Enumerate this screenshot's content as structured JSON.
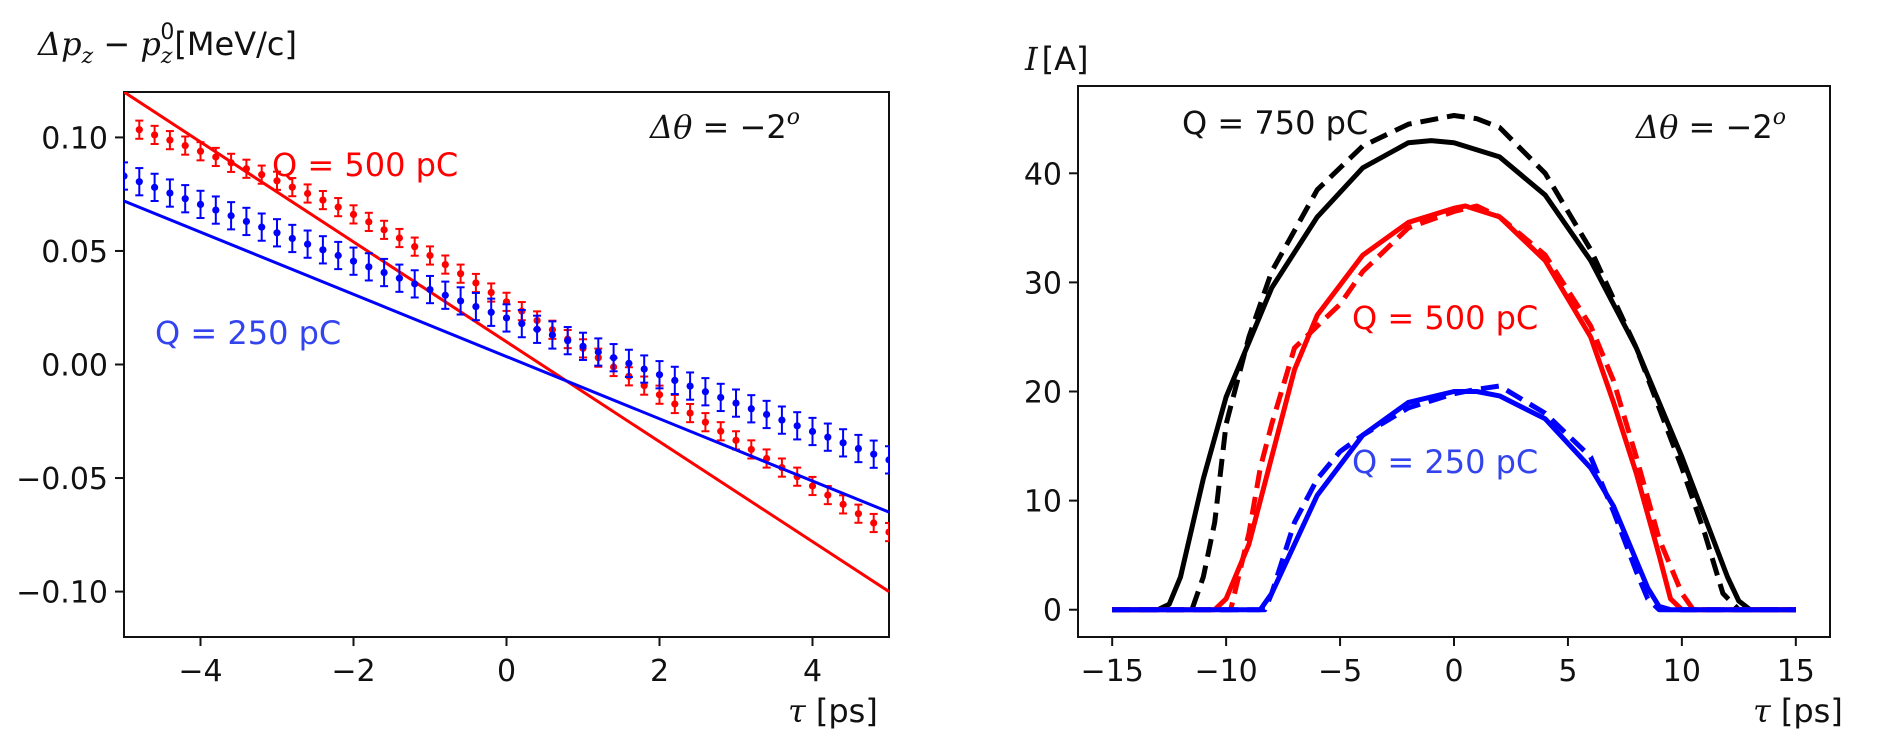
{
  "chart_data": [
    {
      "type": "scatter",
      "panel": "left",
      "ylabel": "Δp_z − p_z^0 [MeV/c]",
      "ylabel_parts": {
        "a": "Δ",
        "b": "p",
        "c": "z",
        "d": " − ",
        "e": "p",
        "f": "z",
        "g": "0",
        "unit": "[MeV/c]"
      },
      "xlabel": "τ [ps]",
      "xlabel_parts": {
        "tau": "τ",
        "unit": " [ps]"
      },
      "xlim": [
        -5,
        5
      ],
      "ylim": [
        -0.12,
        0.12
      ],
      "xticks": [
        -4,
        -2,
        0,
        2,
        4
      ],
      "xtick_labels": [
        "−4",
        "−2",
        "0",
        "2",
        "4"
      ],
      "yticks": [
        0.1,
        0.05,
        0.0,
        -0.05,
        -0.1
      ],
      "ytick_labels": [
        "0.10",
        "0.05",
        "0.00",
        "−0.05",
        "−0.10"
      ],
      "annotation_theta": {
        "d": "Δ",
        "theta": "θ",
        "eq": " = −2",
        "sup": "o"
      },
      "series": [
        {
          "name": "Q = 500 pC",
          "color": "#ff0000",
          "fit": {
            "x": [
              -5,
              5
            ],
            "y": [
              0.12,
              -0.1
            ]
          },
          "x": [
            -4.8,
            -4.6,
            -4.4,
            -4.2,
            -4.0,
            -3.8,
            -3.6,
            -3.4,
            -3.2,
            -3.0,
            -2.8,
            -2.6,
            -2.4,
            -2.2,
            -2.0,
            -1.8,
            -1.6,
            -1.4,
            -1.2,
            -1.0,
            -0.8,
            -0.6,
            -0.4,
            -0.2,
            0.0,
            0.2,
            0.4,
            0.6,
            0.8,
            1.0,
            1.2,
            1.4,
            1.6,
            1.8,
            2.0,
            2.2,
            2.4,
            2.6,
            2.8,
            3.0,
            3.2,
            3.4,
            3.6,
            3.8,
            4.0,
            4.2,
            4.4,
            4.6,
            4.8,
            5.0
          ],
          "y": [
            0.1034,
            0.1011,
            0.0988,
            0.0964,
            0.0939,
            0.0914,
            0.0888,
            0.0862,
            0.0836,
            0.0809,
            0.0781,
            0.0753,
            0.0724,
            0.0693,
            0.0661,
            0.0628,
            0.0593,
            0.0557,
            0.0519,
            0.048,
            0.044,
            0.04,
            0.0359,
            0.0317,
            0.0276,
            0.0235,
            0.0194,
            0.0153,
            0.0112,
            0.0071,
            0.003,
            -0.0011,
            -0.0052,
            -0.0093,
            -0.0133,
            -0.0174,
            -0.0214,
            -0.0254,
            -0.0294,
            -0.0334,
            -0.0374,
            -0.0414,
            -0.0454,
            -0.0494,
            -0.0535,
            -0.0575,
            -0.0616,
            -0.0657,
            -0.0698,
            -0.0738
          ],
          "err": 0.004
        },
        {
          "name": "Q = 250 pC",
          "color": "#0000ff",
          "fit": {
            "x": [
              -5,
              5
            ],
            "y": [
              0.072,
              -0.065
            ]
          },
          "x": [
            -5.0,
            -4.8,
            -4.6,
            -4.4,
            -4.2,
            -4.0,
            -3.8,
            -3.6,
            -3.4,
            -3.2,
            -3.0,
            -2.8,
            -2.6,
            -2.4,
            -2.2,
            -2.0,
            -1.8,
            -1.6,
            -1.4,
            -1.2,
            -1.0,
            -0.8,
            -0.6,
            -0.4,
            -0.2,
            0.0,
            0.2,
            0.4,
            0.6,
            0.8,
            1.0,
            1.2,
            1.4,
            1.6,
            1.8,
            2.0,
            2.2,
            2.4,
            2.6,
            2.8,
            3.0,
            3.2,
            3.4,
            3.6,
            3.8,
            4.0,
            4.2,
            4.4,
            4.6,
            4.8,
            5.0
          ],
          "y": [
            0.083,
            0.0805,
            0.078,
            0.0755,
            0.073,
            0.0705,
            0.068,
            0.0655,
            0.063,
            0.0605,
            0.058,
            0.0555,
            0.053,
            0.0505,
            0.048,
            0.0455,
            0.043,
            0.0405,
            0.038,
            0.0355,
            0.033,
            0.0305,
            0.028,
            0.0255,
            0.023,
            0.0205,
            0.018,
            0.0155,
            0.013,
            0.0105,
            0.008,
            0.0055,
            0.003,
            0.0005,
            -0.002,
            -0.0045,
            -0.007,
            -0.0095,
            -0.012,
            -0.0145,
            -0.017,
            -0.0195,
            -0.022,
            -0.0245,
            -0.027,
            -0.0295,
            -0.032,
            -0.0345,
            -0.037,
            -0.0395,
            -0.042
          ],
          "err": 0.006
        }
      ],
      "labels": [
        "Q = 500 pC",
        "Q = 250 pC"
      ]
    },
    {
      "type": "line",
      "panel": "right",
      "ylabel": "I [A]",
      "ylabel_parts": {
        "i": "I",
        "unit": "[A]"
      },
      "xlabel": "τ [ps]",
      "xlabel_parts": {
        "tau": "τ",
        "unit": " [ps]"
      },
      "xlim": [
        -16.5,
        16.5
      ],
      "ylim": [
        -2.5,
        48
      ],
      "xticks": [
        -15,
        -10,
        -5,
        0,
        5,
        10,
        15
      ],
      "xtick_labels": [
        "−15",
        "−10",
        "−5",
        "0",
        "5",
        "10",
        "15"
      ],
      "yticks": [
        0,
        10,
        20,
        30,
        40
      ],
      "ytick_labels": [
        "0",
        "10",
        "20",
        "30",
        "40"
      ],
      "annotation_theta": {
        "d": "Δ",
        "theta": "θ",
        "eq": " = −2",
        "sup": "o"
      },
      "series": [
        {
          "name": "Q = 750 pC",
          "color": "#000000",
          "solid": {
            "x": [
              -15,
              -13,
              -12.5,
              -12,
              -11,
              -10,
              -8,
              -6,
              -4,
              -2,
              -1,
              0,
              2,
              4,
              6,
              8,
              10,
              11,
              12,
              12.5,
              13,
              15
            ],
            "y": [
              0,
              0,
              0.5,
              3,
              12,
              19.5,
              29.5,
              36,
              40.5,
              42.8,
              43,
              42.8,
              41.5,
              38,
              32,
              24,
              14,
              8.5,
              3,
              0.8,
              0,
              0
            ]
          },
          "dashed": {
            "x": [
              -15,
              -11.5,
              -11,
              -10.5,
              -10,
              -9,
              -8,
              -6,
              -4,
              -2,
              0,
              1,
              2,
              4,
              6,
              8,
              10,
              11,
              11.8,
              12.5,
              15
            ],
            "y": [
              0,
              0,
              3,
              8,
              17,
              25,
              31,
              38.5,
              42.5,
              44.5,
              45.3,
              45,
              44.2,
              40,
              33,
              24,
              13,
              7,
              1.5,
              0,
              0
            ]
          }
        },
        {
          "name": "Q = 500 pC",
          "color": "#ff0000",
          "solid": {
            "x": [
              -15,
              -10.5,
              -10,
              -9,
              -8,
              -7,
              -6,
              -4,
              -2,
              0,
              0.5,
              2,
              4,
              6,
              7,
              8,
              9,
              9.5,
              10,
              15
            ],
            "y": [
              0,
              0,
              1,
              6,
              14,
              22,
              27,
              32.5,
              35.5,
              36.8,
              37,
              36,
              32,
              25,
              19,
              12.5,
              5,
              1,
              0,
              0
            ]
          },
          "dashed": {
            "x": [
              -15,
              -9.8,
              -9,
              -8.5,
              -8,
              -7,
              -5,
              -4,
              -2,
              0,
              1,
              2,
              4,
              6,
              7,
              8,
              9,
              10,
              10.5,
              15
            ],
            "y": [
              0,
              0,
              7,
              13,
              17,
              24,
              28,
              31,
              35,
              36.5,
              37,
              36,
              32.5,
              26,
              21,
              14,
              6.5,
              1.5,
              0,
              0
            ]
          }
        },
        {
          "name": "Q = 250 pC",
          "color": "#0000ff",
          "solid": {
            "x": [
              -15,
              -8.5,
              -8,
              -7,
              -6,
              -4,
              -2,
              0,
              1,
              2,
              4,
              6,
              7,
              8,
              8.5,
              9,
              9.5,
              15
            ],
            "y": [
              0,
              0,
              1.5,
              6,
              10.5,
              16,
              19,
              20,
              20,
              19.6,
              17.5,
              13,
              9.5,
              4.5,
              2,
              0.3,
              0,
              0
            ]
          },
          "dashed": {
            "x": [
              -15,
              -8.3,
              -8,
              -7,
              -6,
              -5,
              -4,
              -2,
              0,
              1,
              2,
              4,
              6,
              7,
              8,
              8.5,
              9,
              15
            ],
            "y": [
              0,
              0,
              1.5,
              8,
              12,
              14.5,
              16,
              18.5,
              19.8,
              20.2,
              20.5,
              18,
              14,
              9,
              3.5,
              1,
              0,
              0
            ]
          }
        }
      ],
      "labels": [
        "Q = 750 pC",
        "Q = 500 pC",
        "Q = 250 pC"
      ]
    }
  ]
}
